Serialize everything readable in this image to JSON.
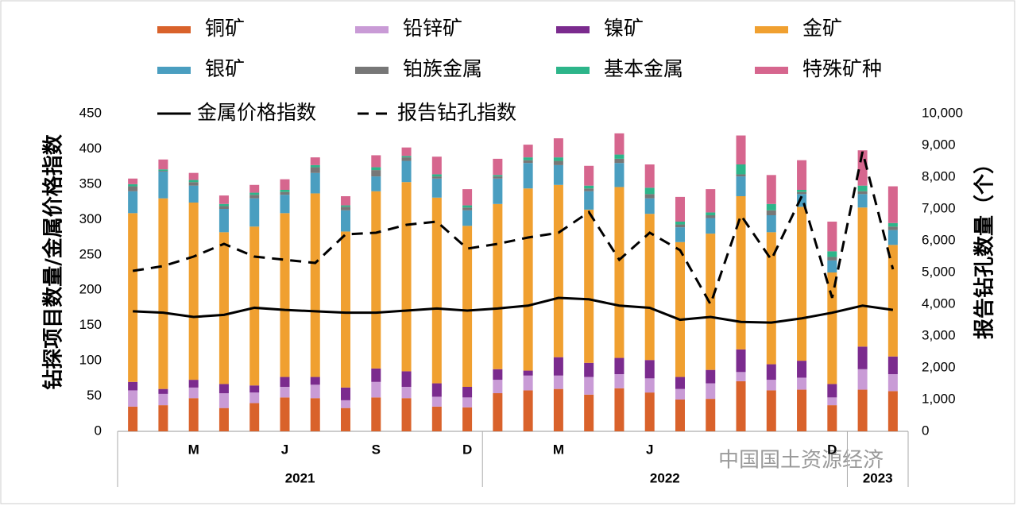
{
  "chart_data": {
    "type": "bar",
    "ylabel": "钻探项目数量/金属价格指数",
    "y2label": "报告钻孔数量（个）",
    "watermark": "中国国土资源经济",
    "categories": [
      null,
      null,
      "M",
      null,
      null,
      "J",
      null,
      null,
      "S",
      null,
      null,
      "D",
      null,
      null,
      "M",
      null,
      null,
      "J",
      null,
      null,
      null,
      null,
      null,
      "D",
      null,
      null
    ],
    "groups": [
      "2021",
      "2022",
      "2023"
    ],
    "group_spans": [
      12,
      12,
      2
    ],
    "ylim": [
      0,
      450
    ],
    "yticks": [
      0,
      50,
      100,
      150,
      200,
      250,
      300,
      350,
      400,
      450
    ],
    "y2lim": [
      0,
      10000
    ],
    "y2ticks": [
      0,
      {
        "value": 1000,
        "label": "1,000"
      },
      {
        "value": 2000,
        "label": "2,000"
      },
      {
        "value": 3000,
        "label": "3,000"
      },
      {
        "value": 4000,
        "label": "4,000"
      },
      {
        "value": 5000,
        "label": "5,000"
      },
      {
        "value": 6000,
        "label": "6,000"
      },
      {
        "value": 7000,
        "label": "7,000"
      },
      {
        "value": 8000,
        "label": "8,000"
      },
      {
        "value": 9000,
        "label": "9,000"
      },
      {
        "value": 10000,
        "label": "10,000"
      }
    ],
    "series": [
      {
        "name": "铜矿",
        "color": "#d9622b",
        "values": [
          35,
          37,
          47,
          33,
          40,
          48,
          47,
          33,
          48,
          47,
          35,
          34,
          54,
          58,
          60,
          52,
          61,
          55,
          45,
          46,
          71,
          58,
          59,
          37,
          59,
          57
        ]
      },
      {
        "name": "铅锌矿",
        "color": "#c99bd6",
        "values": [
          23,
          16,
          15,
          21,
          15,
          15,
          19,
          11,
          22,
          16,
          14,
          14,
          19,
          21,
          19,
          25,
          20,
          20,
          15,
          22,
          13,
          15,
          17,
          11,
          29,
          24
        ]
      },
      {
        "name": "镍矿",
        "color": "#7b2b8e",
        "values": [
          12,
          7,
          11,
          13,
          10,
          14,
          11,
          18,
          19,
          22,
          19,
          15,
          15,
          7,
          26,
          20,
          23,
          26,
          17,
          19,
          32,
          22,
          24,
          19,
          32,
          25
        ]
      },
      {
        "name": "金矿",
        "color": "#f0a030",
        "values": [
          239,
          270,
          251,
          215,
          225,
          232,
          260,
          221,
          251,
          268,
          263,
          228,
          234,
          258,
          244,
          217,
          242,
          207,
          191,
          193,
          217,
          187,
          218,
          158,
          197,
          158
        ]
      },
      {
        "name": "银矿",
        "color": "#4a9ec0",
        "values": [
          31,
          38,
          24,
          33,
          40,
          26,
          29,
          30,
          21,
          30,
          27,
          22,
          36,
          36,
          28,
          26,
          34,
          22,
          21,
          22,
          28,
          24,
          18,
          17,
          19,
          21
        ]
      },
      {
        "name": "铂族金属",
        "color": "#777777",
        "values": [
          7,
          1,
          5,
          4,
          5,
          4,
          8,
          5,
          9,
          5,
          3,
          4,
          3,
          4,
          6,
          4,
          6,
          6,
          4,
          4,
          3,
          7,
          3,
          5,
          4,
          5
        ]
      },
      {
        "name": "基本金属",
        "color": "#2db58a",
        "values": [
          3,
          2,
          3,
          3,
          3,
          3,
          3,
          2,
          4,
          2,
          3,
          3,
          2,
          4,
          5,
          4,
          6,
          9,
          4,
          4,
          14,
          9,
          3,
          8,
          8,
          5
        ]
      },
      {
        "name": "特殊矿种",
        "color": "#d6668e",
        "values": [
          8,
          14,
          10,
          12,
          11,
          15,
          11,
          13,
          17,
          12,
          25,
          23,
          23,
          18,
          27,
          28,
          30,
          33,
          35,
          33,
          41,
          41,
          42,
          42,
          50,
          52
        ]
      },
      {
        "name": "金属价格指数",
        "type": "line",
        "color": "#000000",
        "values": [
          170,
          168,
          162,
          165,
          175,
          172,
          170,
          168,
          168,
          171,
          174,
          171,
          174,
          178,
          189,
          187,
          178,
          175,
          158,
          162,
          155,
          154,
          160,
          168,
          178,
          172
        ]
      },
      {
        "name": "报告钻孔指数",
        "type": "line",
        "dashed": true,
        "axis": "y2",
        "color": "#000000",
        "values": [
          5050,
          5200,
          5500,
          5900,
          5500,
          5400,
          5300,
          6200,
          6250,
          6500,
          6600,
          5750,
          5900,
          6100,
          6250,
          6900,
          5400,
          6250,
          5700,
          4000,
          6800,
          5400,
          7400,
          4200,
          8800,
          5100
        ]
      }
    ]
  }
}
